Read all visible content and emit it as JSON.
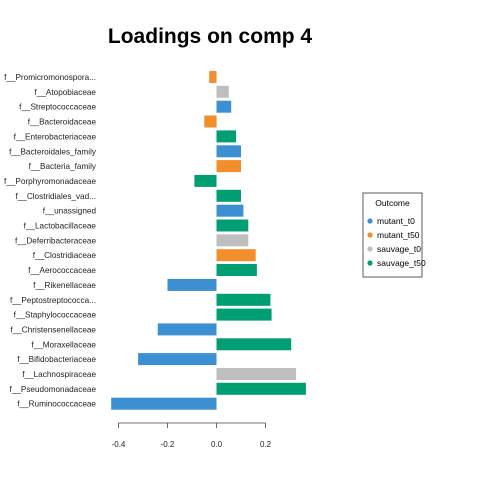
{
  "chart_data": {
    "type": "bar",
    "orientation": "horizontal",
    "title": "Loadings on comp 4",
    "xlabel": "",
    "ylabel": "",
    "xlim": [
      -0.47,
      0.47
    ],
    "xticks": [
      -0.4,
      -0.2,
      0.0,
      0.2
    ],
    "xtick_labels": [
      "-0.4",
      "-0.2",
      "0.0",
      "0.2"
    ],
    "grid": false,
    "legend_position": "right",
    "legend": {
      "title": "Outcome",
      "entries": [
        {
          "label": "mutant_t0",
          "color": "#3C8FD0"
        },
        {
          "label": "mutant_t50",
          "color": "#F28E2B"
        },
        {
          "label": "sauvage_t0",
          "color": "#BEBEBE"
        },
        {
          "label": "sauvage_t50",
          "color": "#009E73"
        }
      ]
    },
    "categories": [
      "f__Promicromonospora...",
      "f__Atopobiaceae",
      "f__Streptococcaceae",
      "f__Bacteroidaceae",
      "f__Enterobacteriaceae",
      "f__Bacteroidales_family",
      "f__Bacteria_family",
      "f__Porphyromonadaceae",
      "f__Clostridiales_vad...",
      "f__unassigned",
      "f__Lactobacillaceae",
      "f__Deferribacteraceae",
      "f__Clostridiaceae",
      "f__Aerococcaceae",
      "f__Rikenellaceae",
      "f__Peptostreptococca...",
      "f__Staphylococcaceae",
      "f__Christensenellaceae",
      "f__Moraxellaceae",
      "f__Bifidobacteriaceae",
      "f__Lachnospiraceae",
      "f__Pseudomonadaceae",
      "f__Ruminococcaceae"
    ],
    "values": [
      -0.03,
      0.05,
      0.06,
      -0.05,
      0.08,
      0.1,
      0.1,
      -0.09,
      0.1,
      0.11,
      0.13,
      0.13,
      0.16,
      0.165,
      -0.2,
      0.22,
      0.225,
      -0.24,
      0.305,
      -0.32,
      0.325,
      0.365,
      -0.43
    ],
    "groups": [
      "mutant_t50",
      "sauvage_t0",
      "mutant_t0",
      "mutant_t50",
      "sauvage_t50",
      "mutant_t0",
      "mutant_t50",
      "sauvage_t50",
      "sauvage_t50",
      "mutant_t0",
      "sauvage_t50",
      "sauvage_t0",
      "mutant_t50",
      "sauvage_t50",
      "mutant_t0",
      "sauvage_t50",
      "sauvage_t50",
      "mutant_t0",
      "sauvage_t50",
      "mutant_t0",
      "sauvage_t0",
      "sauvage_t50",
      "mutant_t0"
    ]
  }
}
